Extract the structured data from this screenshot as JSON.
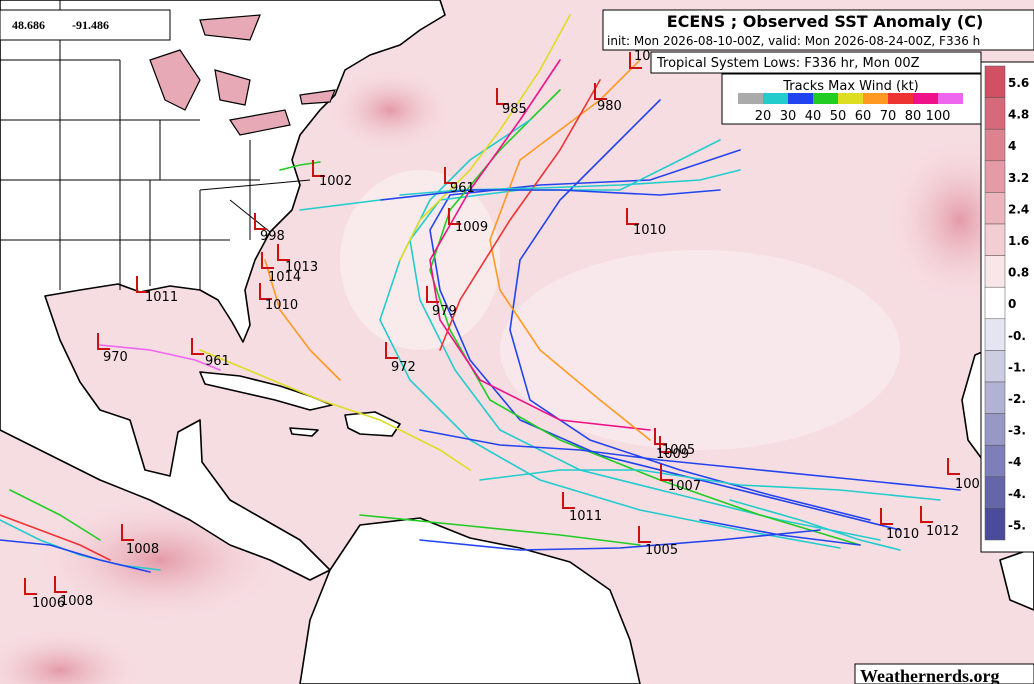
{
  "coordinates": {
    "lat": "48.686",
    "lon": "-91.486"
  },
  "header": {
    "title": "ECENS ; Observed SST Anomaly (C)",
    "subtitle": "init: Mon 2026-08-10-00Z, valid: Mon 2026-08-24-00Z, F336 h",
    "lows_label": "Tropical System Lows: F336 hr, Mon 00Z"
  },
  "legend": {
    "title": "Tracks Max Wind (kt)",
    "colors": [
      "#aaaaaa",
      "#22cccc",
      "#2244ee",
      "#22cc22",
      "#dddd22",
      "#ff9922",
      "#ee3333",
      "#ee1188",
      "#ee66ee"
    ],
    "labels": [
      "20",
      "30",
      "40",
      "50",
      "60",
      "70",
      "80",
      "100"
    ]
  },
  "colorbar": {
    "labels": [
      "5.6",
      "4.8",
      "4",
      "3.2",
      "2.4",
      "1.6",
      "0.8",
      "0",
      "-0.",
      "-1.",
      "-2.",
      "-3.",
      "-4",
      "-4.",
      "-5."
    ]
  },
  "lows": [
    {
      "label": "10"
    },
    {
      "label": "985"
    },
    {
      "label": "980"
    },
    {
      "label": "1002"
    },
    {
      "label": "961"
    },
    {
      "label": "1009"
    },
    {
      "label": "1010"
    },
    {
      "label": "998"
    },
    {
      "label": "1014"
    },
    {
      "label": "1013"
    },
    {
      "label": "1011"
    },
    {
      "label": "1010"
    },
    {
      "label": "970"
    },
    {
      "label": "961"
    },
    {
      "label": "972"
    },
    {
      "label": "979"
    },
    {
      "label": "1005"
    },
    {
      "label": "1009"
    },
    {
      "label": "1007"
    },
    {
      "label": "1011"
    },
    {
      "label": "1005"
    },
    {
      "label": "1010"
    },
    {
      "label": "1012"
    },
    {
      "label": "100"
    },
    {
      "label": "1008"
    },
    {
      "label": "1006"
    },
    {
      "label": "1008"
    }
  ],
  "watermark": "Weathernerds.org"
}
